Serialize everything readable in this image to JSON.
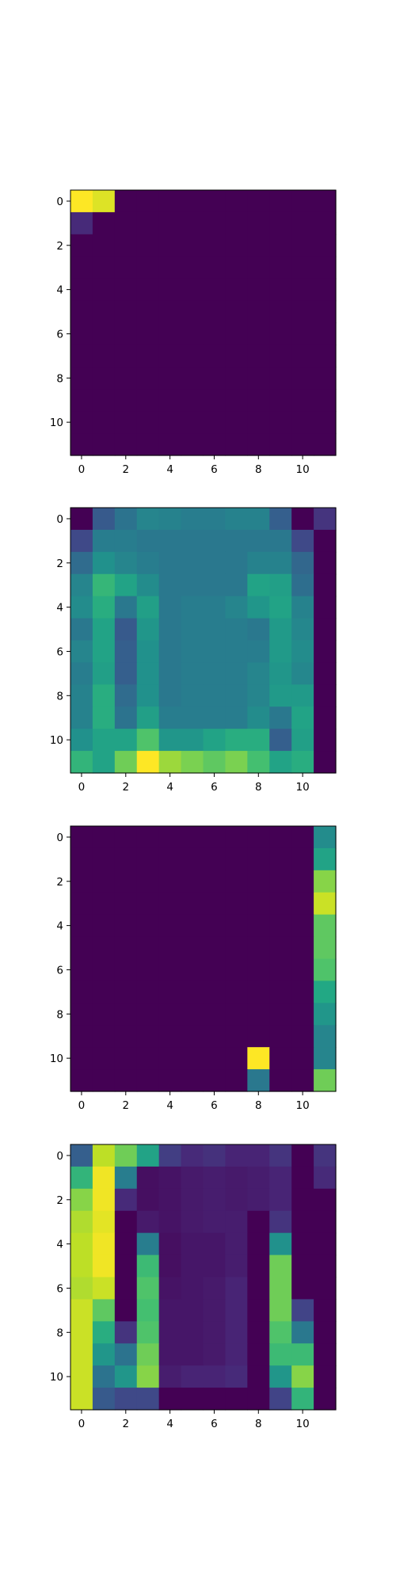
{
  "chart_data": [
    {
      "type": "heatmap",
      "colormap": "viridis",
      "xlim": [
        -0.5,
        11.5
      ],
      "ylim": [
        11.5,
        -0.5
      ],
      "xticks": [
        0,
        2,
        4,
        6,
        8,
        10
      ],
      "yticks": [
        0,
        2,
        4,
        6,
        8,
        10
      ],
      "xticklabels": [
        "0",
        "2",
        "4",
        "6",
        "8",
        "10"
      ],
      "yticklabels": [
        "0",
        "2",
        "4",
        "6",
        "8",
        "10"
      ],
      "values": [
        [
          1.0,
          0.95,
          0,
          0,
          0,
          0,
          0,
          0,
          0,
          0,
          0,
          0
        ],
        [
          0.12,
          0,
          0,
          0,
          0,
          0,
          0,
          0,
          0,
          0,
          0,
          0
        ],
        [
          0,
          0,
          0,
          0,
          0,
          0,
          0,
          0,
          0,
          0,
          0,
          0
        ],
        [
          0,
          0,
          0,
          0,
          0,
          0,
          0,
          0,
          0,
          0,
          0,
          0
        ],
        [
          0,
          0,
          0,
          0,
          0,
          0,
          0,
          0,
          0,
          0,
          0,
          0
        ],
        [
          0,
          0,
          0,
          0,
          0,
          0,
          0,
          0,
          0,
          0,
          0,
          0
        ],
        [
          0,
          0,
          0,
          0,
          0,
          0,
          0,
          0,
          0,
          0,
          0,
          0
        ],
        [
          0,
          0,
          0,
          0,
          0,
          0,
          0,
          0,
          0,
          0,
          0,
          0
        ],
        [
          0,
          0,
          0,
          0,
          0,
          0,
          0,
          0,
          0,
          0,
          0,
          0
        ],
        [
          0,
          0,
          0,
          0,
          0,
          0,
          0,
          0,
          0,
          0,
          0,
          0
        ],
        [
          0,
          0,
          0,
          0,
          0,
          0,
          0,
          0,
          0,
          0,
          0,
          0
        ],
        [
          0,
          0,
          0,
          0,
          0,
          0,
          0,
          0,
          0,
          0,
          0,
          0
        ]
      ]
    },
    {
      "type": "heatmap",
      "colormap": "viridis",
      "xlim": [
        -0.5,
        11.5
      ],
      "ylim": [
        11.5,
        -0.5
      ],
      "xticks": [
        0,
        2,
        4,
        6,
        8,
        10
      ],
      "yticks": [
        0,
        2,
        4,
        6,
        8,
        10
      ],
      "xticklabels": [
        "0",
        "2",
        "4",
        "6",
        "8",
        "10"
      ],
      "yticklabels": [
        "0",
        "2",
        "4",
        "6",
        "8",
        "10"
      ],
      "values": [
        [
          0.0,
          0.28,
          0.38,
          0.45,
          0.44,
          0.42,
          0.42,
          0.44,
          0.44,
          0.3,
          0.0,
          0.15
        ],
        [
          0.22,
          0.42,
          0.42,
          0.4,
          0.4,
          0.4,
          0.4,
          0.4,
          0.4,
          0.4,
          0.22,
          0.0
        ],
        [
          0.35,
          0.5,
          0.45,
          0.42,
          0.4,
          0.4,
          0.4,
          0.4,
          0.44,
          0.44,
          0.33,
          0.0
        ],
        [
          0.45,
          0.66,
          0.58,
          0.48,
          0.4,
          0.4,
          0.4,
          0.4,
          0.58,
          0.56,
          0.36,
          0.0
        ],
        [
          0.48,
          0.62,
          0.4,
          0.56,
          0.4,
          0.42,
          0.42,
          0.45,
          0.52,
          0.58,
          0.44,
          0.0
        ],
        [
          0.4,
          0.58,
          0.28,
          0.52,
          0.4,
          0.42,
          0.42,
          0.42,
          0.4,
          0.54,
          0.46,
          0.0
        ],
        [
          0.45,
          0.58,
          0.3,
          0.5,
          0.4,
          0.42,
          0.42,
          0.42,
          0.42,
          0.54,
          0.48,
          0.0
        ],
        [
          0.42,
          0.56,
          0.3,
          0.5,
          0.4,
          0.42,
          0.42,
          0.42,
          0.45,
          0.52,
          0.46,
          0.0
        ],
        [
          0.44,
          0.62,
          0.35,
          0.5,
          0.4,
          0.42,
          0.42,
          0.42,
          0.45,
          0.54,
          0.54,
          0.0
        ],
        [
          0.44,
          0.62,
          0.38,
          0.56,
          0.42,
          0.42,
          0.42,
          0.42,
          0.48,
          0.4,
          0.58,
          0.0
        ],
        [
          0.5,
          0.58,
          0.58,
          0.72,
          0.52,
          0.52,
          0.58,
          0.62,
          0.62,
          0.3,
          0.56,
          0.0
        ],
        [
          0.65,
          0.58,
          0.78,
          1.0,
          0.85,
          0.8,
          0.75,
          0.8,
          0.7,
          0.58,
          0.62,
          0.0
        ]
      ]
    },
    {
      "type": "heatmap",
      "colormap": "viridis",
      "xlim": [
        -0.5,
        11.5
      ],
      "ylim": [
        11.5,
        -0.5
      ],
      "xticks": [
        0,
        2,
        4,
        6,
        8,
        10
      ],
      "yticks": [
        0,
        2,
        4,
        6,
        8,
        10
      ],
      "xticklabels": [
        "0",
        "2",
        "4",
        "6",
        "8",
        "10"
      ],
      "yticklabels": [
        "0",
        "2",
        "4",
        "6",
        "8",
        "10"
      ],
      "values": [
        [
          0,
          0,
          0,
          0,
          0,
          0,
          0,
          0,
          0,
          0,
          0,
          0.48
        ],
        [
          0,
          0,
          0,
          0,
          0,
          0,
          0,
          0,
          0,
          0,
          0,
          0.58
        ],
        [
          0,
          0,
          0,
          0,
          0,
          0,
          0,
          0,
          0,
          0,
          0,
          0.82
        ],
        [
          0,
          0,
          0,
          0,
          0,
          0,
          0,
          0,
          0,
          0,
          0,
          0.92
        ],
        [
          0,
          0,
          0,
          0,
          0,
          0,
          0,
          0,
          0,
          0,
          0,
          0.75
        ],
        [
          0,
          0,
          0,
          0,
          0,
          0,
          0,
          0,
          0,
          0,
          0,
          0.75
        ],
        [
          0,
          0,
          0,
          0,
          0,
          0,
          0,
          0,
          0,
          0,
          0,
          0.72
        ],
        [
          0,
          0,
          0,
          0,
          0,
          0,
          0,
          0,
          0,
          0,
          0,
          0.6
        ],
        [
          0,
          0,
          0,
          0,
          0,
          0,
          0,
          0,
          0,
          0,
          0,
          0.52
        ],
        [
          0,
          0,
          0,
          0,
          0,
          0,
          0,
          0,
          0,
          0,
          0,
          0.45
        ],
        [
          0,
          0,
          0,
          0,
          0,
          0,
          0,
          0,
          1.0,
          0,
          0,
          0.45
        ],
        [
          0,
          0,
          0,
          0,
          0,
          0,
          0,
          0,
          0.4,
          0,
          0,
          0.78
        ]
      ]
    },
    {
      "type": "heatmap",
      "colormap": "viridis",
      "xlim": [
        -0.5,
        11.5
      ],
      "ylim": [
        11.5,
        -0.5
      ],
      "xticks": [
        0,
        2,
        4,
        6,
        8,
        10
      ],
      "yticks": [
        0,
        2,
        4,
        6,
        8,
        10
      ],
      "xticklabels": [
        "0",
        "2",
        "4",
        "6",
        "8",
        "10"
      ],
      "yticklabels": [
        "0",
        "2",
        "4",
        "6",
        "8",
        "10"
      ],
      "values": [
        [
          0.3,
          0.9,
          0.78,
          0.58,
          0.18,
          0.12,
          0.14,
          0.1,
          0.1,
          0.15,
          0.0,
          0.15
        ],
        [
          0.65,
          0.98,
          0.42,
          0.04,
          0.05,
          0.07,
          0.08,
          0.07,
          0.08,
          0.1,
          0.0,
          0.12
        ],
        [
          0.82,
          0.98,
          0.12,
          0.04,
          0.05,
          0.07,
          0.08,
          0.07,
          0.08,
          0.1,
          0.0,
          0.0
        ],
        [
          0.88,
          0.96,
          0.0,
          0.07,
          0.05,
          0.07,
          0.08,
          0.08,
          0.0,
          0.15,
          0.0,
          0.0
        ],
        [
          0.9,
          0.98,
          0.0,
          0.42,
          0.04,
          0.06,
          0.06,
          0.08,
          0.0,
          0.5,
          0.0,
          0.0
        ],
        [
          0.9,
          0.98,
          0.0,
          0.68,
          0.04,
          0.06,
          0.06,
          0.08,
          0.0,
          0.78,
          0.0,
          0.0
        ],
        [
          0.88,
          0.92,
          0.0,
          0.72,
          0.05,
          0.06,
          0.07,
          0.1,
          0.0,
          0.78,
          0.0,
          0.0
        ],
        [
          0.92,
          0.75,
          0.0,
          0.7,
          0.06,
          0.06,
          0.07,
          0.1,
          0.0,
          0.78,
          0.2,
          0.0
        ],
        [
          0.92,
          0.62,
          0.15,
          0.72,
          0.06,
          0.06,
          0.07,
          0.1,
          0.0,
          0.72,
          0.4,
          0.0
        ],
        [
          0.92,
          0.52,
          0.38,
          0.78,
          0.06,
          0.06,
          0.07,
          0.1,
          0.0,
          0.68,
          0.68,
          0.0
        ],
        [
          0.92,
          0.38,
          0.52,
          0.82,
          0.08,
          0.1,
          0.1,
          0.12,
          0.0,
          0.52,
          0.82,
          0.0
        ],
        [
          0.92,
          0.28,
          0.22,
          0.22,
          0.0,
          0.0,
          0.0,
          0.0,
          0.0,
          0.2,
          0.65,
          0.0
        ]
      ]
    }
  ]
}
